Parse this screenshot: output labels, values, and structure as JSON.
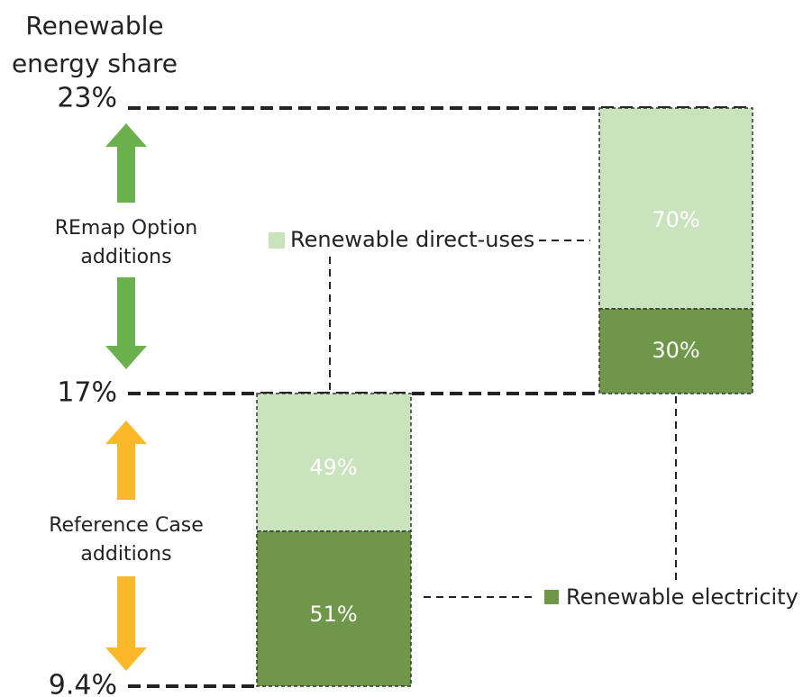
{
  "axis_title": [
    "Renewable",
    "energy share"
  ],
  "levels": [
    "23%",
    "17%",
    "9.4%"
  ],
  "annotations": {
    "remap": [
      "REmap Option",
      "additions"
    ],
    "reference": [
      "Reference Case",
      "additions"
    ]
  },
  "bars": [
    {
      "direct_uses": "49%",
      "electricity": "51%"
    },
    {
      "direct_uses": "70%",
      "electricity": "30%"
    }
  ],
  "legend": {
    "direct_uses": "Renewable direct-uses",
    "electricity": "Renewable electricity"
  }
}
